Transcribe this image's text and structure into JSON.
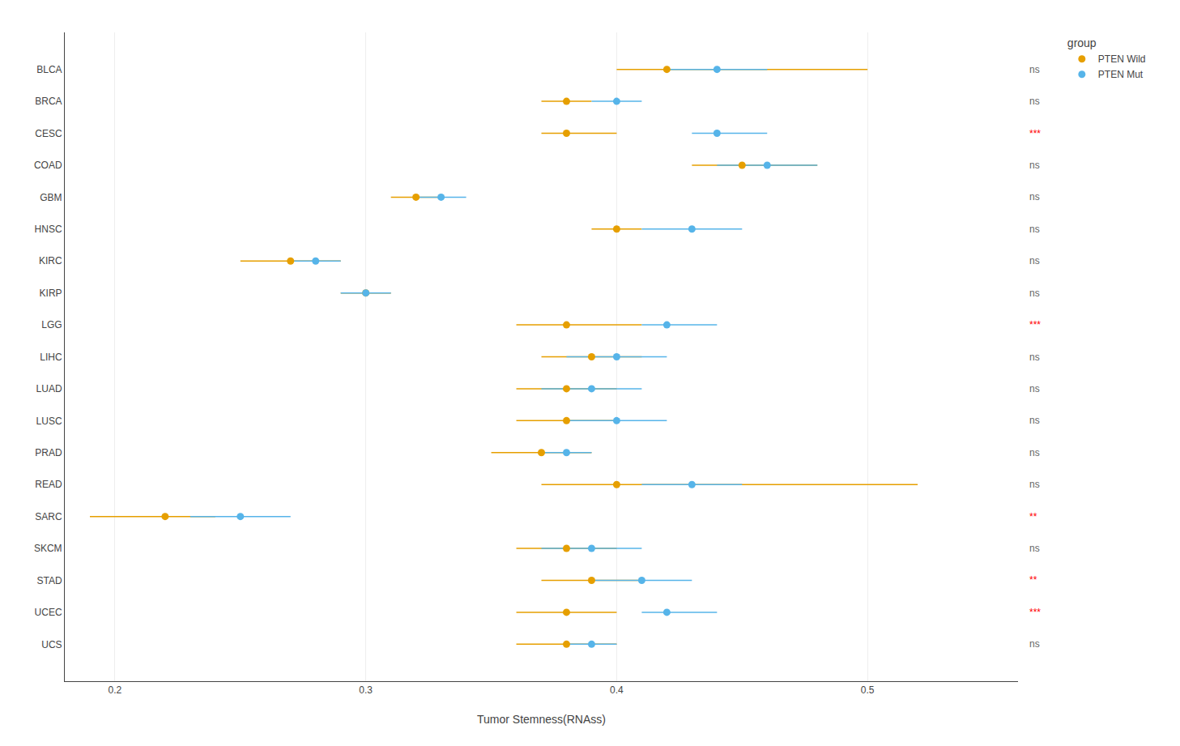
{
  "chart_data": {
    "type": "dot_ci",
    "categories": [
      "BLCA",
      "BRCA",
      "CESC",
      "COAD",
      "GBM",
      "HNSC",
      "KIRC",
      "KIRP",
      "LGG",
      "LIHC",
      "LUAD",
      "LUSC",
      "PRAD",
      "READ",
      "SARC",
      "SKCM",
      "STAD",
      "UCEC",
      "UCS"
    ],
    "series": [
      {
        "name": "PTEN Wild",
        "color": "#E69F00",
        "values": [
          0.42,
          0.38,
          0.38,
          0.45,
          0.32,
          0.4,
          0.27,
          0.3,
          0.38,
          0.39,
          0.38,
          0.38,
          0.37,
          0.4,
          0.22,
          0.38,
          0.39,
          0.38,
          0.38
        ],
        "ci_low": [
          0.4,
          0.37,
          0.37,
          0.43,
          0.31,
          0.39,
          0.25,
          0.29,
          0.36,
          0.37,
          0.36,
          0.36,
          0.35,
          0.37,
          0.19,
          0.36,
          0.37,
          0.36,
          0.36
        ],
        "ci_high": [
          0.5,
          0.39,
          0.4,
          0.48,
          0.33,
          0.41,
          0.29,
          0.31,
          0.41,
          0.41,
          0.4,
          0.4,
          0.39,
          0.52,
          0.24,
          0.4,
          0.41,
          0.4,
          0.4
        ]
      },
      {
        "name": "PTEN Mut",
        "color": "#56B4E9",
        "values": [
          0.44,
          0.4,
          0.44,
          0.46,
          0.33,
          0.43,
          0.28,
          0.3,
          0.42,
          0.4,
          0.39,
          0.4,
          0.38,
          0.43,
          0.25,
          0.39,
          0.41,
          0.42,
          0.39
        ],
        "ci_low": [
          0.42,
          0.39,
          0.43,
          0.44,
          0.32,
          0.41,
          0.27,
          0.29,
          0.41,
          0.38,
          0.37,
          0.38,
          0.37,
          0.41,
          0.23,
          0.37,
          0.39,
          0.41,
          0.38
        ],
        "ci_high": [
          0.46,
          0.41,
          0.46,
          0.48,
          0.34,
          0.45,
          0.29,
          0.31,
          0.44,
          0.42,
          0.41,
          0.42,
          0.39,
          0.45,
          0.27,
          0.41,
          0.43,
          0.44,
          0.4
        ]
      }
    ],
    "annotations": {
      "texts": [
        "ns",
        "ns",
        "***",
        "ns",
        "ns",
        "ns",
        "ns",
        "ns",
        "***",
        "ns",
        "ns",
        "ns",
        "ns",
        "ns",
        "**",
        "ns",
        "**",
        "***",
        "ns"
      ],
      "colors": [
        "#666666",
        "#666666",
        "red",
        "#666666",
        "#666666",
        "#666666",
        "#666666",
        "#666666",
        "red",
        "#666666",
        "#666666",
        "#666666",
        "#666666",
        "#666666",
        "red",
        "#666666",
        "red",
        "red",
        "#666666"
      ]
    },
    "xlabel": "Tumor Stemness(RNAss)",
    "xlim": [
      0.18,
      0.56
    ],
    "xticks": [
      0.2,
      0.3,
      0.4,
      0.5
    ],
    "legend_title": "group",
    "legend": "upper right",
    "grid": "x",
    "marker": "circle"
  }
}
